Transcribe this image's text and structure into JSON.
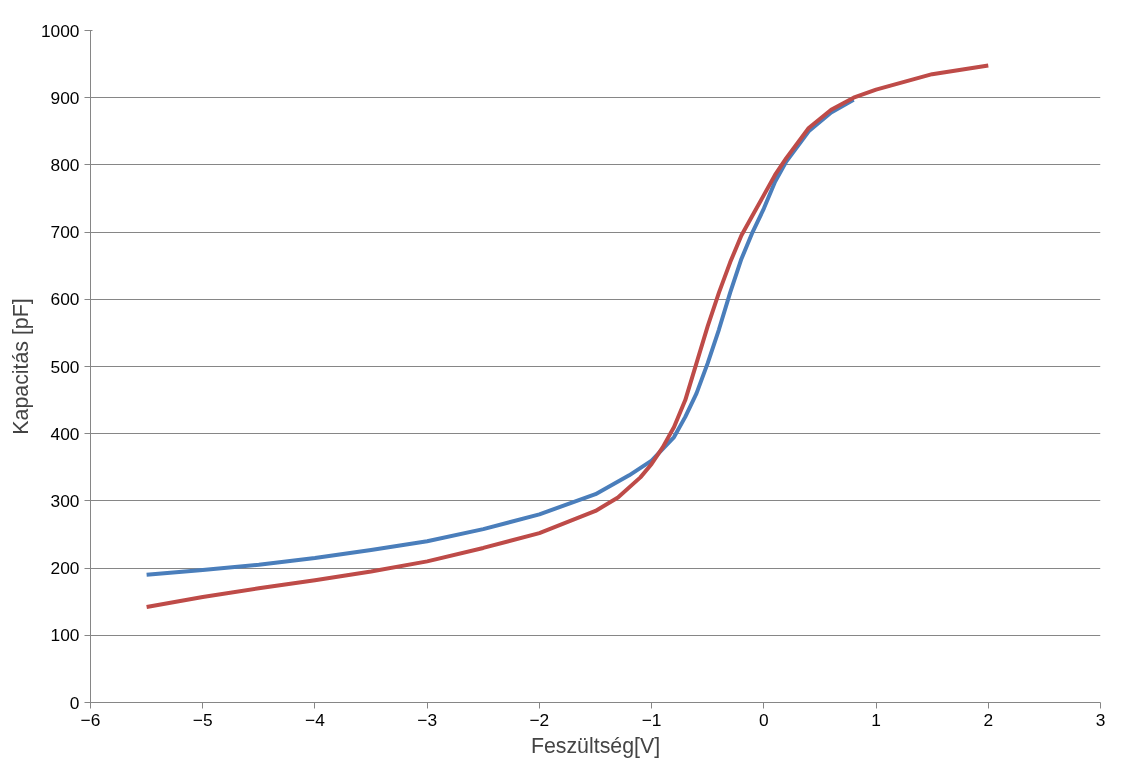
{
  "chart_data": {
    "type": "line",
    "xlabel": "Feszültség[V]",
    "ylabel": "Kapacitás [pF]",
    "xlim": [
      -6,
      3
    ],
    "xticks": [
      -6,
      -5,
      -4,
      -3,
      -2,
      -1,
      0,
      1,
      2,
      3
    ],
    "ylim": [
      0,
      1000
    ],
    "yticks": [
      0,
      100,
      200,
      300,
      400,
      500,
      600,
      700,
      800,
      900,
      1000
    ],
    "grid": "y",
    "line_style": "solid",
    "marker": "none",
    "series": [
      {
        "color": "#4a7ebb",
        "x": [
          -5.5,
          -5,
          -4.5,
          -4,
          -3.5,
          -3,
          -2.5,
          -2,
          -1.5,
          -1.2,
          -1,
          -0.8,
          -0.7,
          -0.6,
          -0.5,
          -0.4,
          -0.3,
          -0.2,
          -0.1,
          0,
          0.1,
          0.2,
          0.4,
          0.6,
          0.8
        ],
        "values": [
          190,
          197,
          205,
          215,
          227,
          240,
          258,
          280,
          310,
          338,
          360,
          395,
          425,
          460,
          505,
          555,
          610,
          660,
          700,
          735,
          775,
          805,
          850,
          878,
          897
        ]
      },
      {
        "color": "#be4b48",
        "x": [
          -5.5,
          -5,
          -4.5,
          -4,
          -3.5,
          -3,
          -2.5,
          -2,
          -1.5,
          -1.3,
          -1.1,
          -1,
          -0.9,
          -0.8,
          -0.7,
          -0.6,
          -0.5,
          -0.4,
          -0.3,
          -0.2,
          -0.1,
          0,
          0.1,
          0.2,
          0.4,
          0.6,
          0.8,
          1,
          1.5,
          2
        ],
        "values": [
          142,
          157,
          170,
          182,
          195,
          210,
          230,
          252,
          285,
          305,
          335,
          355,
          380,
          410,
          450,
          505,
          560,
          610,
          655,
          695,
          725,
          755,
          785,
          810,
          855,
          882,
          900,
          912,
          935,
          948
        ]
      }
    ]
  }
}
